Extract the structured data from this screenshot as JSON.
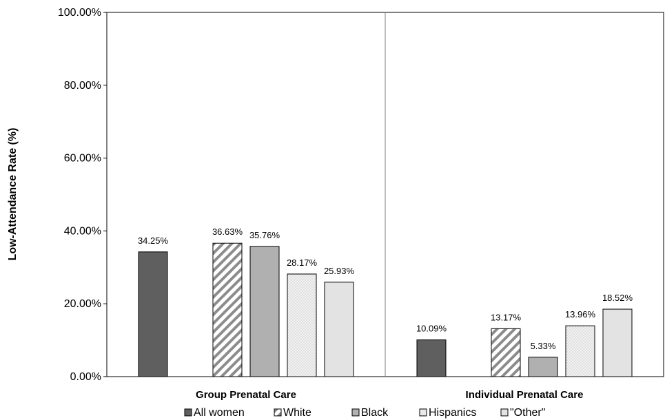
{
  "chart_data": {
    "type": "bar",
    "ylabel": "Low-Attendance Rate (%)",
    "xlabel": "",
    "ylim": [
      0,
      100
    ],
    "y_ticks": [
      "0.00%",
      "20.00%",
      "40.00%",
      "60.00%",
      "80.00%",
      "100.00%"
    ],
    "y_tick_values": [
      0,
      20,
      40,
      60,
      80,
      100
    ],
    "categories": [
      "Group Prenatal Care",
      "Individual Prenatal Care"
    ],
    "series": [
      {
        "name": "All women",
        "values": [
          34.25,
          10.09
        ],
        "labels": [
          "34.25%",
          "10.09%"
        ],
        "color": "#5f5f5f",
        "pattern": "solid"
      },
      {
        "name": "White",
        "values": [
          36.63,
          13.17
        ],
        "labels": [
          "36.63%",
          "13.17%"
        ],
        "color": "#ffffff",
        "pattern": "diagonal-stripes"
      },
      {
        "name": "Black",
        "values": [
          35.76,
          5.33
        ],
        "labels": [
          "35.76%",
          "5.33%"
        ],
        "color": "#b0b0b0",
        "pattern": "solid"
      },
      {
        "name": "Hispanics",
        "values": [
          28.17,
          13.96
        ],
        "labels": [
          "28.17%",
          "13.96%"
        ],
        "color": "#efefef",
        "pattern": "dots"
      },
      {
        "name": "\"Other\"",
        "values": [
          25.93,
          18.52
        ],
        "labels": [
          "25.93%",
          "18.52%"
        ],
        "color": "#e3e3e3",
        "pattern": "solid"
      }
    ],
    "legend": "bottom",
    "grid": false
  }
}
